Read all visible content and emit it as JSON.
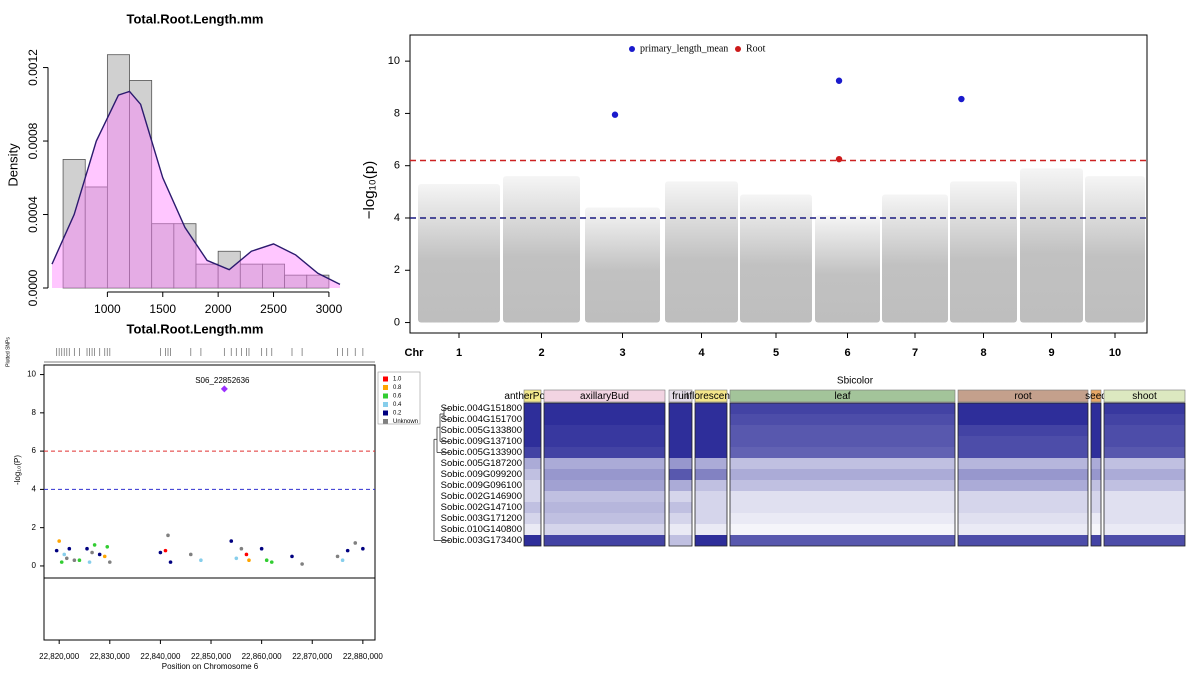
{
  "chart_data": [
    {
      "type": "histogram",
      "title": "Total.Root.Length.mm",
      "y_label": "Density",
      "bins": [
        600,
        800,
        1000,
        1200,
        1400,
        1600,
        1800,
        2000,
        2200,
        2400,
        2600,
        2800,
        3000
      ],
      "values": [
        0.0007,
        0.00055,
        0.00127,
        0.00113,
        0.00035,
        0.00035,
        0.00013,
        0.0002,
        0.00013,
        0.00013,
        7e-05,
        7e-05
      ],
      "color": "#d0d0d0",
      "density": {
        "x": [
          500,
          700,
          900,
          1100,
          1200,
          1300,
          1500,
          1700,
          1900,
          2100,
          2300,
          2500,
          2700,
          2900,
          3100
        ],
        "y": [
          0.00013,
          0.0004,
          0.0008,
          0.00105,
          0.00107,
          0.001,
          0.0006,
          0.00033,
          0.00015,
          0.0001,
          0.0002,
          0.00024,
          0.00018,
          8e-05,
          2e-05
        ],
        "color": "#2b1a6e",
        "fill": "#ff80ff"
      },
      "xlim": [
        500,
        3100
      ],
      "xticks": [
        1000,
        1500,
        2000,
        2500,
        3000
      ],
      "ylim": [
        0,
        0.00135
      ],
      "yticks": [
        {
          "value": 0,
          "label": "0.0000"
        },
        0.0004,
        0.0008,
        0.0012
      ]
    },
    {
      "type": "manhattan",
      "x_label": "Chr",
      "y_label": "−log₁₀(p)",
      "categories": [
        "1",
        "2",
        "3",
        "4",
        "5",
        "6",
        "7",
        "8",
        "9",
        "10"
      ],
      "background": {
        "color": "#bebebe",
        "values": [
          5.3,
          5.6,
          4.4,
          5.4,
          4.9,
          4.1,
          4.9,
          5.4,
          5.9,
          5.6
        ]
      },
      "series": [
        {
          "name": "primary_length_mean",
          "color": "#1a1acc",
          "values": [
            null,
            null,
            7.95,
            null,
            null,
            9.25,
            null,
            8.55,
            null,
            null
          ]
        },
        {
          "name": "Root",
          "color": "#cc1a1a",
          "values": [
            null,
            null,
            null,
            null,
            null,
            6.25,
            null,
            null,
            null,
            null
          ]
        }
      ],
      "thresholds": [
        {
          "value": 6.2,
          "color": "#cc2222"
        },
        {
          "value": 4,
          "color": "#1a1a80"
        }
      ],
      "ylim": [
        -0.4,
        11
      ],
      "yticks": [
        0,
        2,
        4,
        6,
        8,
        10
      ],
      "legend": "top"
    },
    {
      "type": "locus",
      "title": "Total.Root.Length.mm",
      "rug_label": "Plotted SNPs",
      "x_label": "Position on Chromosome 6",
      "y_label": "-log₁₀(P)",
      "lead": {
        "x": 22852636,
        "y": 9.25,
        "label": "S06_22852636",
        "color": "#9b30ff"
      },
      "series": [
        {
          "name": "1.0",
          "color": "#ff0000",
          "x": [
            22857000,
            22841000
          ],
          "y": [
            0.6,
            0.8
          ]
        },
        {
          "name": "0.8",
          "color": "#ffa500",
          "x": [
            22820000,
            22829000,
            22857500
          ],
          "y": [
            1.3,
            0.5,
            0.3
          ]
        },
        {
          "name": "0.6",
          "color": "#32cd32",
          "x": [
            22820500,
            22824000,
            22827000,
            22829500,
            22861000,
            22862000
          ],
          "y": [
            0.2,
            0.3,
            1.1,
            1.0,
            0.3,
            0.2
          ]
        },
        {
          "name": "0.4",
          "color": "#87ceeb",
          "x": [
            22821000,
            22826000,
            22848000,
            22855000,
            22876000
          ],
          "y": [
            0.6,
            0.2,
            0.3,
            0.4,
            0.3
          ]
        },
        {
          "name": "0.2",
          "color": "#000080",
          "x": [
            22819500,
            22822000,
            22825500,
            22828000,
            22840000,
            22842000,
            22854000,
            22860000,
            22866000,
            22877000,
            22880000
          ],
          "y": [
            0.8,
            0.9,
            0.9,
            0.6,
            0.7,
            0.2,
            1.3,
            0.9,
            0.5,
            0.8,
            0.9
          ]
        },
        {
          "name": "Unknown",
          "color": "#808080",
          "x": [
            22821500,
            22823000,
            22826500,
            22830000,
            22841500,
            22846000,
            22856000,
            22868000,
            22875000,
            22878500
          ],
          "y": [
            0.4,
            0.3,
            0.7,
            0.2,
            1.6,
            0.6,
            0.9,
            0.1,
            0.5,
            1.2
          ]
        }
      ],
      "thresholds": [
        {
          "value": 6,
          "color": "#e03030"
        },
        {
          "value": 4,
          "color": "#3030d0"
        }
      ],
      "xlim": [
        22817000,
        22882400
      ],
      "xticks": [
        {
          "value": 22820000,
          "label": "22,820,000"
        },
        {
          "value": 22830000,
          "label": "22,830,000"
        },
        {
          "value": 22840000,
          "label": "22,840,000"
        },
        {
          "value": 22850000,
          "label": "22,850,000"
        },
        {
          "value": 22860000,
          "label": "22,860,000"
        },
        {
          "value": 22870000,
          "label": "22,870,000"
        },
        {
          "value": 22880000,
          "label": "22,880,000"
        }
      ],
      "ylim": [
        -0.63,
        10.5
      ],
      "yticks": [
        0,
        2,
        4,
        6,
        8,
        10
      ]
    },
    {
      "type": "heatmap",
      "title": "Sbicolor",
      "groups": [
        {
          "name": "antherPollen",
          "color": "#f3e98c"
        },
        {
          "name": "axillaryBud",
          "color": "#f2d4e2"
        },
        {
          "name": "fruit",
          "color": "#e4dce8"
        },
        {
          "name": "inflorescence",
          "color": "#f4e58a"
        },
        {
          "name": "leaf",
          "color": "#a3c49a"
        },
        {
          "name": "root",
          "color": "#c4a08c"
        },
        {
          "name": "seed",
          "color": "#e8a866"
        },
        {
          "name": "shoot",
          "color": "#dce8c0"
        }
      ],
      "rows": [
        "Sobic.004G151800",
        "Sobic.004G151700",
        "Sobic.005G133800",
        "Sobic.009G137100",
        "Sobic.005G133900",
        "Sobic.005G187200",
        "Sobic.009G099200",
        "Sobic.009G096100",
        "Sobic.002G146900",
        "Sobic.002G147100",
        "Sobic.003G171200",
        "Sobic.010G140800",
        "Sobic.003G173400"
      ],
      "values": [
        [
          1,
          1,
          1,
          1,
          0.9,
          1,
          1,
          0.95
        ],
        [
          1,
          1,
          1,
          1,
          0.85,
          1,
          1,
          0.9
        ],
        [
          1,
          0.95,
          1,
          1,
          0.8,
          0.9,
          1,
          0.85
        ],
        [
          1,
          0.95,
          1,
          1,
          0.8,
          0.85,
          1,
          0.85
        ],
        [
          0.9,
          0.9,
          1,
          1,
          0.75,
          0.85,
          1,
          0.8
        ],
        [
          0.4,
          0.4,
          0.5,
          0.4,
          0.3,
          0.35,
          0.4,
          0.3
        ],
        [
          0.3,
          0.5,
          0.8,
          0.6,
          0.4,
          0.5,
          0.5,
          0.4
        ],
        [
          0.2,
          0.45,
          0.4,
          0.3,
          0.3,
          0.4,
          0.3,
          0.3
        ],
        [
          0.2,
          0.3,
          0.2,
          0.2,
          0.15,
          0.2,
          0.2,
          0.15
        ],
        [
          0.3,
          0.35,
          0.3,
          0.2,
          0.15,
          0.2,
          0.2,
          0.15
        ],
        [
          0.2,
          0.3,
          0.2,
          0.2,
          0.1,
          0.15,
          0.1,
          0.15
        ],
        [
          0.1,
          0.2,
          0.1,
          0.1,
          0.05,
          0.1,
          0.05,
          0.1
        ],
        [
          1,
          0.9,
          0.3,
          1,
          0.8,
          0.85,
          0.9,
          0.85
        ]
      ],
      "color": "#2e2e9a"
    }
  ]
}
